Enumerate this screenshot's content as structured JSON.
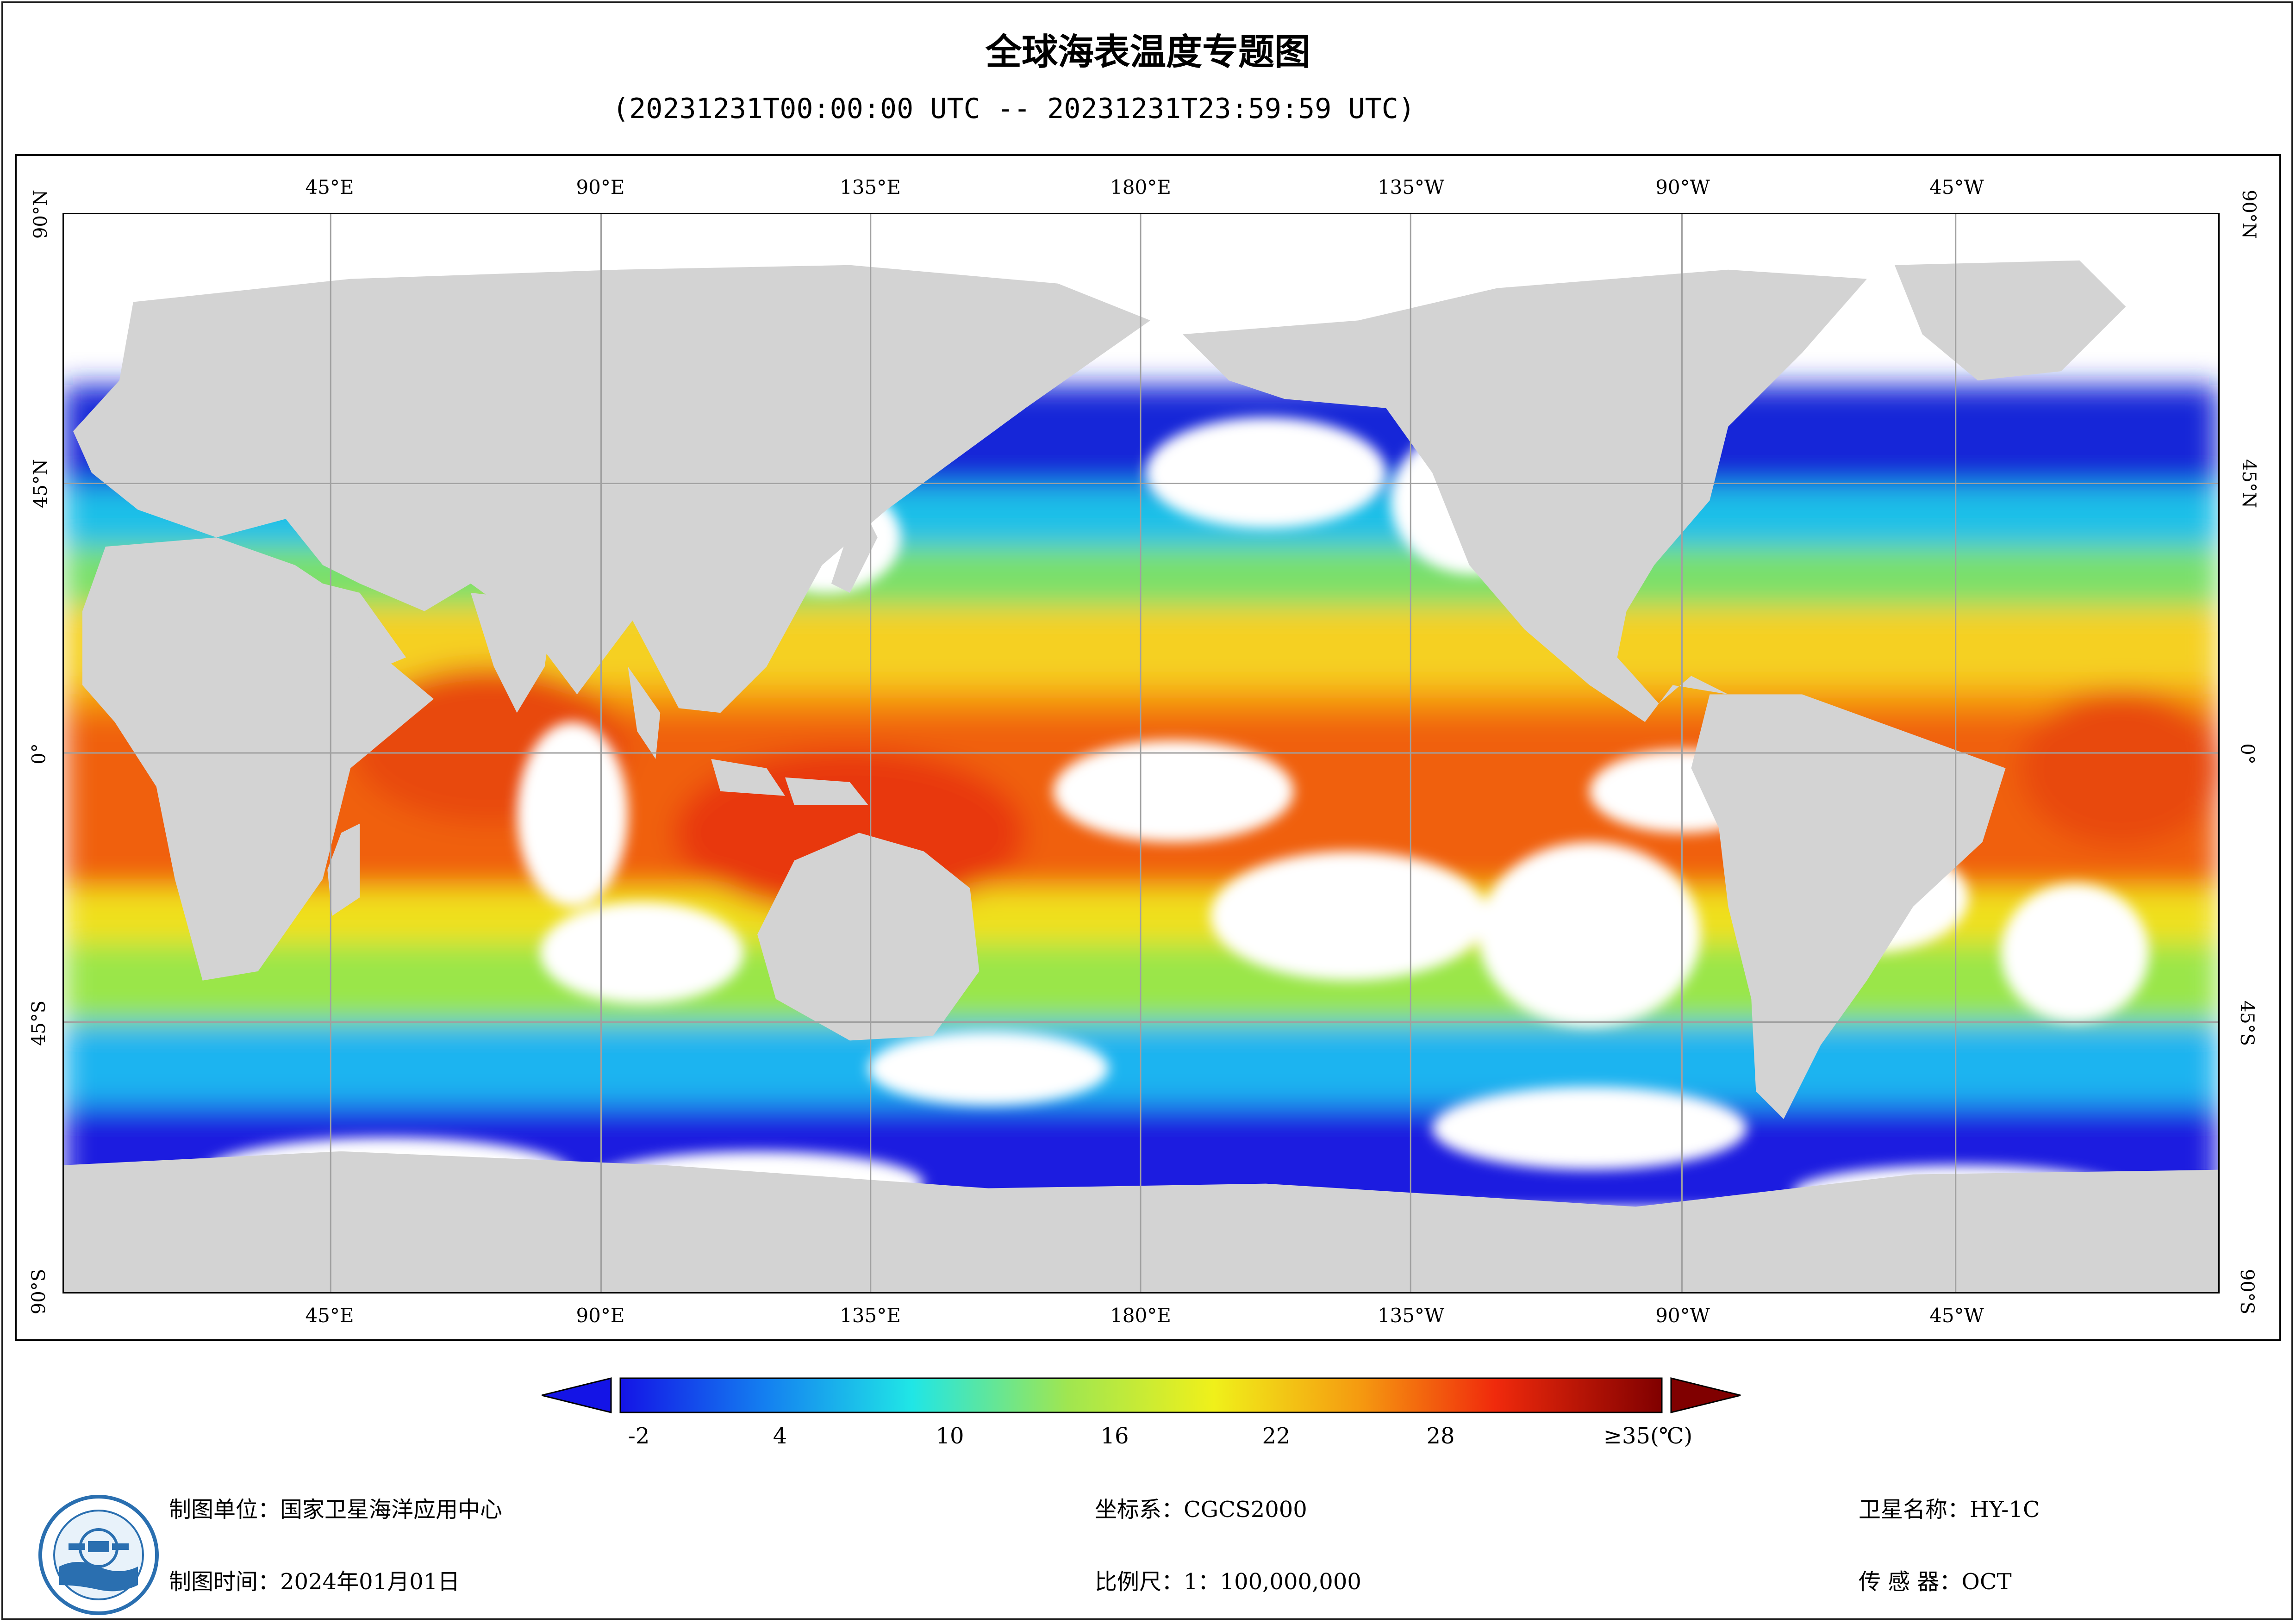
{
  "header": {
    "title": "全球海表温度专题图",
    "subtitle": "(20231231T00:00:00 UTC -- 20231231T23:59:59 UTC)"
  },
  "map": {
    "lon_labels": [
      "45°E",
      "90°E",
      "135°E",
      "180°E",
      "135°W",
      "90°W",
      "45°W"
    ],
    "lat_labels": [
      "90°N",
      "45°N",
      "0°",
      "45°S",
      "90°S"
    ],
    "colors": {
      "land": "#d3d3d3",
      "cloud": "#ffffff",
      "grid": "#a0a0a0"
    }
  },
  "colorbar": {
    "ticks": [
      "-2",
      "4",
      "10",
      "16",
      "22",
      "28",
      "≥35(℃)"
    ],
    "min_color": "#1414e6",
    "max_color": "#800000"
  },
  "footer": {
    "producer": "制图单位：国家卫星海洋应用中心",
    "time": "制图时间：2024年01月01日",
    "crs": "坐标系：CGCS2000",
    "scale": "比例尺：1：100,000,000",
    "satellite": "卫星名称：HY-1C",
    "sensor": "传 感 器：OCT"
  }
}
